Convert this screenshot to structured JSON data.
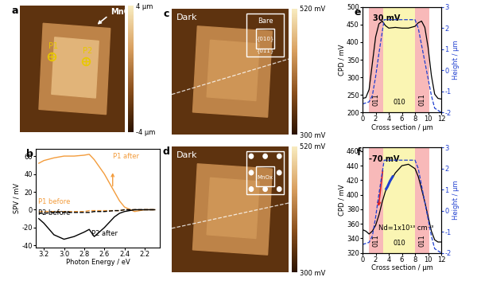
{
  "chart_data": [
    {
      "panel": "b",
      "type": "line",
      "x_label": "Photon Energy / eV",
      "y_label": "SPV / mV",
      "xlim": [
        3.28,
        2.05
      ],
      "xticks": [
        3.2,
        3.0,
        2.8,
        2.6,
        2.4,
        2.2
      ],
      "ylim": [
        -42,
        68
      ],
      "yticks": [
        -40,
        -20,
        0,
        20,
        40,
        60
      ],
      "series": [
        {
          "name": "P1 after",
          "color": "#f39c3c",
          "line_style": "solid",
          "x": [
            3.25,
            3.2,
            3.1,
            3.0,
            2.9,
            2.8,
            2.75,
            2.7,
            2.6,
            2.5,
            2.45,
            2.4,
            2.3,
            2.2,
            2.1
          ],
          "values": [
            52,
            55,
            58,
            60,
            60,
            61,
            62,
            56,
            40,
            20,
            10,
            3,
            -2,
            0,
            0
          ]
        },
        {
          "name": "P1 before",
          "color": "#f39c3c",
          "line_style": "dashed",
          "x": [
            3.25,
            3.2,
            3.1,
            3.0,
            2.9,
            2.8,
            2.75,
            2.7,
            2.6,
            2.5,
            2.45,
            2.4,
            2.3,
            2.2,
            2.1
          ],
          "values": [
            -2,
            -2,
            -2,
            -2,
            -2,
            -2,
            -1,
            -1,
            -1,
            -1,
            -1,
            0,
            0,
            0,
            0
          ]
        },
        {
          "name": "P2 before",
          "color": "#000000",
          "line_style": "dashed",
          "x": [
            3.25,
            3.2,
            3.1,
            3.0,
            2.9,
            2.8,
            2.75,
            2.7,
            2.6,
            2.5,
            2.45,
            2.4,
            2.3,
            2.2,
            2.1
          ],
          "values": [
            -4,
            -4,
            -3,
            -3,
            -3,
            -3,
            -3,
            -2,
            -2,
            -1,
            -1,
            0,
            0,
            0,
            0
          ]
        },
        {
          "name": "P2 after",
          "color": "#000000",
          "line_style": "solid",
          "x": [
            3.25,
            3.2,
            3.1,
            3.0,
            2.9,
            2.8,
            2.75,
            2.7,
            2.6,
            2.5,
            2.45,
            2.4,
            2.3,
            2.2,
            2.1
          ],
          "values": [
            -10,
            -15,
            -28,
            -33,
            -30,
            -25,
            -22,
            -30,
            -20,
            -8,
            -4,
            -2,
            0,
            0,
            0
          ]
        }
      ]
    },
    {
      "panel": "e",
      "type": "line",
      "x_label": "Cross section / µm",
      "y_label": "CPD / mV",
      "y2_label": "Height / µm",
      "xlim": [
        0,
        12
      ],
      "xticks": [
        0,
        2,
        4,
        6,
        8,
        10,
        12
      ],
      "ylim": [
        200,
        500
      ],
      "yticks": [
        200,
        250,
        300,
        350,
        400,
        450,
        500
      ],
      "y2lim": [
        -2,
        3
      ],
      "y2ticks": [
        -2,
        -1,
        0,
        1,
        2,
        3
      ],
      "annotations": [
        "30 mV"
      ],
      "regions": [
        {
          "start": 1,
          "end": 3.2,
          "label": "011",
          "color": "#f7a8a8"
        },
        {
          "start": 3.2,
          "end": 8,
          "label": "010",
          "color": "#f9f3a0"
        },
        {
          "start": 8,
          "end": 10.2,
          "label": "011",
          "color": "#f7a8a8"
        }
      ],
      "series": [
        {
          "color": "#000000",
          "line_style": "solid",
          "x": [
            0,
            0.5,
            1,
            1.5,
            2,
            2.5,
            3,
            3.5,
            4,
            5,
            6,
            7,
            8,
            8.5,
            9,
            9.5,
            10,
            10.5,
            11,
            11.5,
            12
          ],
          "values": [
            240,
            242,
            265,
            340,
            415,
            452,
            460,
            447,
            440,
            442,
            440,
            440,
            445,
            455,
            460,
            442,
            385,
            305,
            252,
            240,
            238
          ]
        },
        {
          "color": "#1f3fd0",
          "line_style": "dashed",
          "axis": "y2",
          "x": [
            0,
            1,
            1.5,
            2,
            2.5,
            3,
            3.3,
            8,
            8.5,
            9,
            9.5,
            10,
            10.5,
            11,
            12
          ],
          "values": [
            -1.6,
            -1.5,
            -1.2,
            -0.3,
            0.8,
            1.8,
            2.4,
            2.4,
            2.0,
            1.2,
            0.4,
            -0.4,
            -1.2,
            -1.8,
            -2.0
          ]
        }
      ]
    },
    {
      "panel": "f",
      "type": "line",
      "x_label": "Cross section / µm",
      "y_label": "CPD / mV",
      "y2_label": "Height / µm",
      "xlim": [
        0,
        12
      ],
      "xticks": [
        0,
        2,
        4,
        6,
        8,
        10,
        12
      ],
      "ylim": [
        320,
        465
      ],
      "yticks": [
        320,
        340,
        360,
        380,
        400,
        420,
        440,
        460
      ],
      "y2lim": [
        -2,
        3
      ],
      "y2ticks": [
        -2,
        -1,
        0,
        1,
        2,
        3
      ],
      "annotations": [
        "-70 mV",
        "Nd=1x10¹³ cm⁻³"
      ],
      "regions": [
        {
          "start": 1,
          "end": 3.2,
          "label": "011",
          "color": "#f7a8a8"
        },
        {
          "start": 3.2,
          "end": 8,
          "label": "010",
          "color": "#f9f3a0"
        },
        {
          "start": 8,
          "end": 10.2,
          "label": "011",
          "color": "#f7a8a8"
        }
      ],
      "series": [
        {
          "color": "#000000",
          "line_style": "solid",
          "x": [
            0,
            0.5,
            1,
            1.5,
            2,
            2.5,
            3,
            3.5,
            4,
            5,
            6,
            7,
            8,
            8.5,
            9,
            9.5,
            10,
            10.5,
            11,
            11.5,
            12
          ],
          "values": [
            352,
            350,
            346,
            350,
            358,
            372,
            390,
            405,
            415,
            430,
            440,
            442,
            436,
            425,
            408,
            390,
            370,
            350,
            338,
            335,
            335
          ]
        },
        {
          "color": "#1f3fd0",
          "line_style": "solid",
          "x": [
            3.6,
            3.8,
            4.0,
            4.2,
            4.4,
            4.6
          ],
          "values": [
            408,
            411,
            415,
            419,
            422,
            425
          ]
        },
        {
          "color": "#1f3fd0",
          "line_style": "dashed",
          "axis": "y2",
          "x": [
            0,
            1,
            1.5,
            2,
            2.5,
            3,
            3.3,
            8,
            8.5,
            9,
            9.5,
            10,
            10.5,
            11,
            12
          ],
          "values": [
            -1.6,
            -1.5,
            -1.2,
            -0.3,
            0.8,
            1.8,
            2.4,
            2.4,
            2.0,
            1.2,
            0.4,
            -0.4,
            -1.2,
            -1.8,
            -2.0
          ]
        }
      ]
    }
  ],
  "images": [
    {
      "panel": "a",
      "labels": [
        "P1",
        "P2"
      ],
      "annotation": "MnOx",
      "colorbar": {
        "range": [
          -4,
          4
        ],
        "ticks": [
          {
            "value": -4,
            "label": "-4 µm"
          },
          {
            "value": 4,
            "label": "4 µm"
          }
        ]
      }
    },
    {
      "panel": "c",
      "title": "Dark",
      "inset": [
        "Bare",
        "{010}",
        "{011}"
      ],
      "colorbar": {
        "range": [
          300,
          520
        ],
        "ticks": [
          {
            "value": 300,
            "label": "300 mV"
          },
          {
            "value": 520,
            "label": "520 mV"
          }
        ]
      }
    },
    {
      "panel": "d",
      "title": "Dark",
      "inset": [
        "MnOx"
      ],
      "colorbar": {
        "range": [
          300,
          520
        ],
        "ticks": [
          {
            "value": 300,
            "label": "300 mV"
          },
          {
            "value": 520,
            "label": "520 mV"
          }
        ]
      }
    }
  ]
}
